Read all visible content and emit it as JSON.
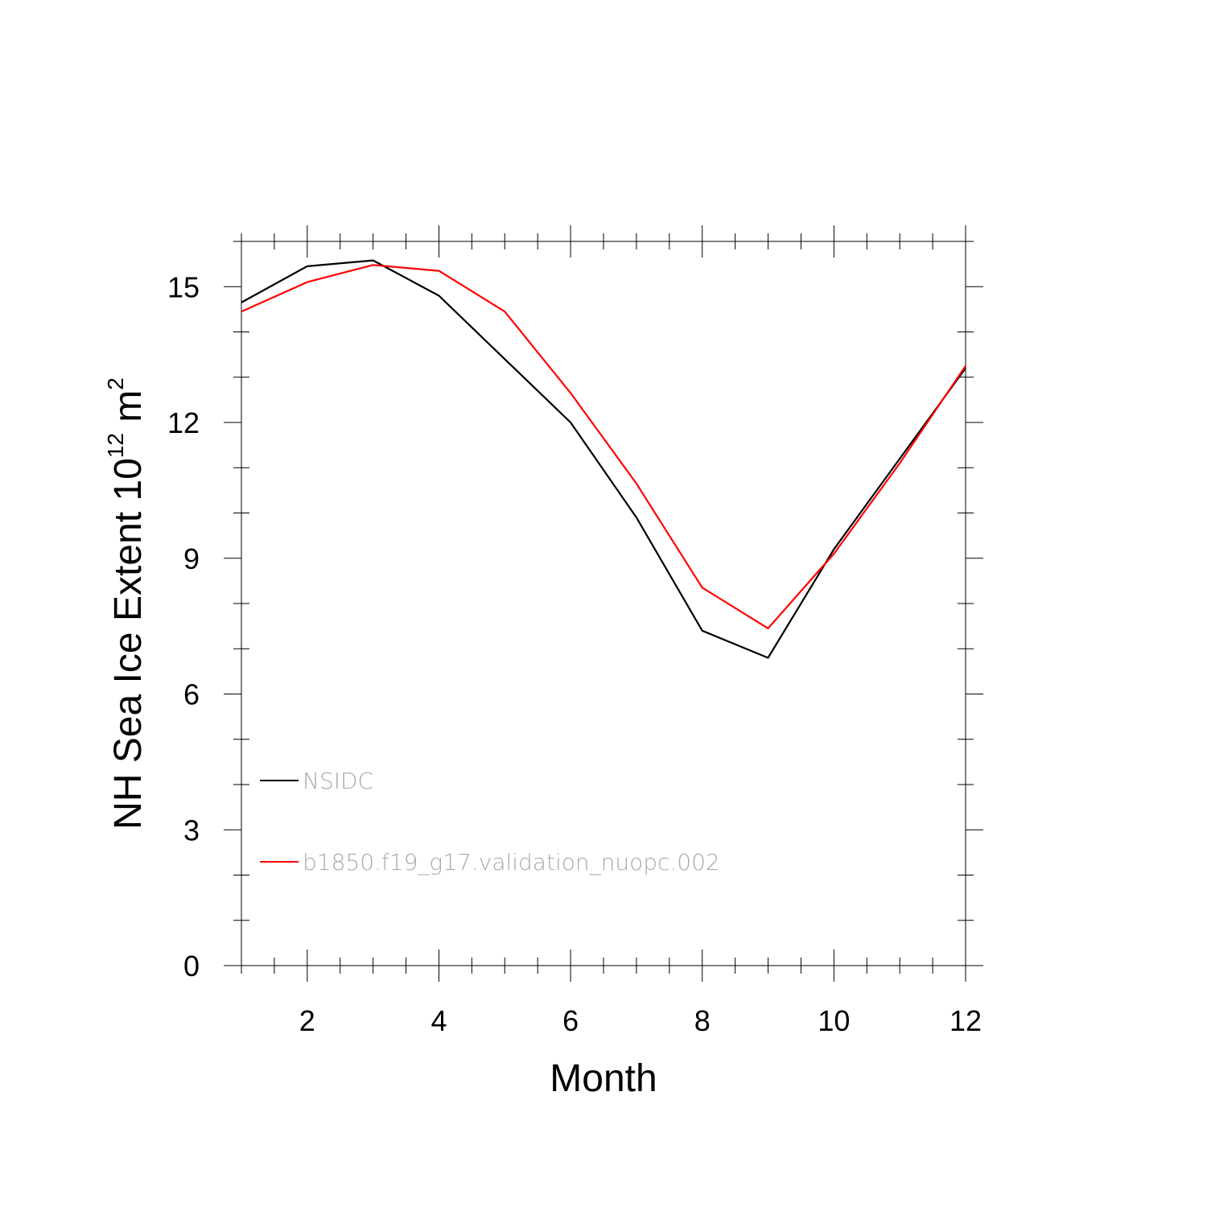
{
  "chart_data": {
    "type": "line",
    "xlabel": "Month",
    "ylabel_main": "NH Sea Ice Extent 10",
    "ylabel_exponent": "12",
    "ylabel_unit": " m",
    "ylabel_unit_exponent": "2",
    "xlim": [
      1,
      12
    ],
    "ylim": [
      0,
      16
    ],
    "x_ticks": [
      2,
      4,
      6,
      8,
      10,
      12
    ],
    "y_ticks": [
      0,
      3,
      6,
      9,
      12,
      15
    ],
    "x_minor_step": 0.5,
    "y_minor_step": 1,
    "grid": false,
    "legend_placement": "lower-left",
    "x": [
      1,
      2,
      3,
      4,
      5,
      6,
      7,
      8,
      9,
      10,
      11,
      12
    ],
    "series": [
      {
        "name": "NSIDC",
        "color": "#000000",
        "values": [
          14.65,
          15.45,
          15.58,
          14.8,
          13.4,
          12.0,
          9.9,
          7.4,
          6.8,
          9.2,
          11.2,
          13.2
        ]
      },
      {
        "name": "b1850.f19_g17.validation_nuopc.002",
        "color": "#ff0000",
        "values": [
          14.45,
          15.1,
          15.48,
          15.35,
          14.45,
          12.65,
          10.65,
          8.35,
          7.45,
          9.1,
          11.1,
          13.25
        ]
      }
    ]
  }
}
